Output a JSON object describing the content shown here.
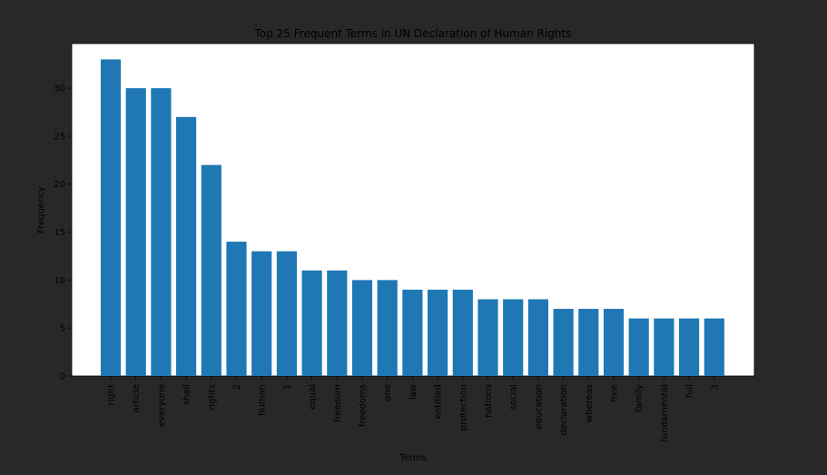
{
  "chart_data": {
    "type": "bar",
    "title": "Top 25 Frequent Terms in UN Declaration of Human Rights",
    "xlabel": "Terms",
    "ylabel": "Frequency",
    "categories": [
      "right",
      "article",
      "everyone",
      "shall",
      "rights",
      "2",
      "human",
      "1",
      "equal",
      "freedom",
      "freedoms",
      "one",
      "law",
      "entitled",
      "protection",
      "nations",
      "social",
      "education",
      "declaration",
      "whereas",
      "free",
      "family",
      "fundamental",
      "full",
      "3"
    ],
    "values": [
      33,
      30,
      30,
      27,
      22,
      14,
      13,
      13,
      11,
      11,
      10,
      10,
      9,
      9,
      9,
      8,
      8,
      8,
      7,
      7,
      7,
      6,
      6,
      6,
      6
    ],
    "yticks": [
      0,
      5,
      10,
      15,
      20,
      25,
      30
    ],
    "ylim": [
      0,
      34.65
    ],
    "grid": false,
    "bar_color": "#1f77b4",
    "background": "#282828",
    "plot_background": "#ffffff",
    "text_color": "#000000"
  }
}
